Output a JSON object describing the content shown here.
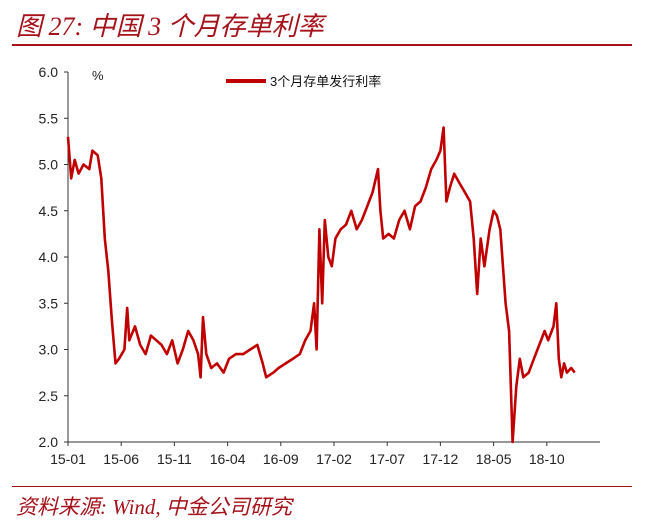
{
  "header": {
    "title": "图 27:  中国 3 个月存单利率"
  },
  "footer": {
    "source": "资料来源: Wind, 中金公司研究"
  },
  "colors": {
    "accent": "#a5121a",
    "series": "#c00000"
  },
  "chart_data": {
    "type": "line",
    "title": "",
    "xlabel": "",
    "ylabel": "",
    "unit_label": "%",
    "ylim": [
      2.0,
      6.0
    ],
    "y_ticks": [
      "6.0",
      "5.5",
      "5.0",
      "4.5",
      "4.0",
      "3.5",
      "3.0",
      "2.5",
      "2.0"
    ],
    "x_ticks": [
      "15-01",
      "15-06",
      "15-11",
      "16-04",
      "16-09",
      "17-02",
      "17-07",
      "17-12",
      "18-05",
      "18-10"
    ],
    "legend": {
      "position": "top",
      "entries": [
        "3个月存单发行利率"
      ]
    },
    "grid": false,
    "series": [
      {
        "name": "3个月存单发行利率",
        "points": [
          [
            "2015-01-01",
            5.3
          ],
          [
            "2015-01-10",
            4.85
          ],
          [
            "2015-01-20",
            5.05
          ],
          [
            "2015-02-01",
            4.9
          ],
          [
            "2015-02-15",
            5.0
          ],
          [
            "2015-03-01",
            4.95
          ],
          [
            "2015-03-10",
            5.15
          ],
          [
            "2015-03-25",
            5.1
          ],
          [
            "2015-04-05",
            4.85
          ],
          [
            "2015-04-15",
            4.2
          ],
          [
            "2015-04-25",
            3.85
          ],
          [
            "2015-05-05",
            3.3
          ],
          [
            "2015-05-15",
            2.85
          ],
          [
            "2015-05-25",
            2.9
          ],
          [
            "2015-06-10",
            3.0
          ],
          [
            "2015-06-18",
            3.45
          ],
          [
            "2015-06-24",
            3.1
          ],
          [
            "2015-07-10",
            3.25
          ],
          [
            "2015-07-25",
            3.05
          ],
          [
            "2015-08-10",
            2.95
          ],
          [
            "2015-08-25",
            3.15
          ],
          [
            "2015-09-10",
            3.1
          ],
          [
            "2015-09-25",
            3.05
          ],
          [
            "2015-10-10",
            2.95
          ],
          [
            "2015-10-25",
            3.1
          ],
          [
            "2015-11-10",
            2.85
          ],
          [
            "2015-11-25",
            3.0
          ],
          [
            "2015-12-10",
            3.2
          ],
          [
            "2015-12-25",
            3.1
          ],
          [
            "2016-01-08",
            2.95
          ],
          [
            "2016-01-15",
            2.7
          ],
          [
            "2016-01-22",
            3.35
          ],
          [
            "2016-02-01",
            2.95
          ],
          [
            "2016-02-15",
            2.8
          ],
          [
            "2016-03-01",
            2.85
          ],
          [
            "2016-03-20",
            2.75
          ],
          [
            "2016-04-05",
            2.9
          ],
          [
            "2016-04-25",
            2.95
          ],
          [
            "2016-05-15",
            2.95
          ],
          [
            "2016-06-05",
            3.0
          ],
          [
            "2016-06-25",
            3.05
          ],
          [
            "2016-07-10",
            2.85
          ],
          [
            "2016-07-20",
            2.7
          ],
          [
            "2016-08-10",
            2.75
          ],
          [
            "2016-08-25",
            2.8
          ],
          [
            "2016-09-15",
            2.85
          ],
          [
            "2016-10-05",
            2.9
          ],
          [
            "2016-10-25",
            2.95
          ],
          [
            "2016-11-10",
            3.1
          ],
          [
            "2016-11-25",
            3.2
          ],
          [
            "2016-12-05",
            3.5
          ],
          [
            "2016-12-12",
            3.0
          ],
          [
            "2016-12-20",
            4.3
          ],
          [
            "2016-12-28",
            3.5
          ],
          [
            "2017-01-05",
            4.4
          ],
          [
            "2017-01-15",
            4.0
          ],
          [
            "2017-01-25",
            3.9
          ],
          [
            "2017-02-05",
            4.2
          ],
          [
            "2017-02-20",
            4.3
          ],
          [
            "2017-03-05",
            4.35
          ],
          [
            "2017-03-20",
            4.5
          ],
          [
            "2017-04-05",
            4.3
          ],
          [
            "2017-04-20",
            4.4
          ],
          [
            "2017-05-05",
            4.55
          ],
          [
            "2017-05-20",
            4.7
          ],
          [
            "2017-06-05",
            4.95
          ],
          [
            "2017-06-12",
            4.5
          ],
          [
            "2017-06-20",
            4.2
          ],
          [
            "2017-07-05",
            4.25
          ],
          [
            "2017-07-20",
            4.2
          ],
          [
            "2017-08-05",
            4.4
          ],
          [
            "2017-08-20",
            4.5
          ],
          [
            "2017-09-05",
            4.3
          ],
          [
            "2017-09-20",
            4.55
          ],
          [
            "2017-10-05",
            4.6
          ],
          [
            "2017-10-20",
            4.75
          ],
          [
            "2017-11-05",
            4.95
          ],
          [
            "2017-11-20",
            5.05
          ],
          [
            "2017-12-01",
            5.15
          ],
          [
            "2017-12-10",
            5.4
          ],
          [
            "2017-12-18",
            4.6
          ],
          [
            "2017-12-28",
            4.75
          ],
          [
            "2018-01-10",
            4.9
          ],
          [
            "2018-01-25",
            4.8
          ],
          [
            "2018-02-10",
            4.7
          ],
          [
            "2018-02-25",
            4.6
          ],
          [
            "2018-03-05",
            4.2
          ],
          [
            "2018-03-15",
            3.6
          ],
          [
            "2018-03-25",
            4.2
          ],
          [
            "2018-04-05",
            3.9
          ],
          [
            "2018-04-20",
            4.3
          ],
          [
            "2018-05-01",
            4.5
          ],
          [
            "2018-05-10",
            4.45
          ],
          [
            "2018-05-20",
            4.3
          ],
          [
            "2018-06-05",
            3.5
          ],
          [
            "2018-06-15",
            3.2
          ],
          [
            "2018-06-25",
            2.0
          ],
          [
            "2018-07-05",
            2.6
          ],
          [
            "2018-07-15",
            2.9
          ],
          [
            "2018-07-25",
            2.7
          ],
          [
            "2018-08-10",
            2.75
          ],
          [
            "2018-08-25",
            2.9
          ],
          [
            "2018-09-10",
            3.05
          ],
          [
            "2018-09-25",
            3.2
          ],
          [
            "2018-10-05",
            3.1
          ],
          [
            "2018-10-20",
            3.25
          ],
          [
            "2018-10-28",
            3.5
          ],
          [
            "2018-11-05",
            2.9
          ],
          [
            "2018-11-12",
            2.7
          ],
          [
            "2018-11-20",
            2.85
          ],
          [
            "2018-11-28",
            2.75
          ],
          [
            "2018-12-10",
            2.8
          ],
          [
            "2018-12-20",
            2.75
          ]
        ]
      }
    ]
  }
}
